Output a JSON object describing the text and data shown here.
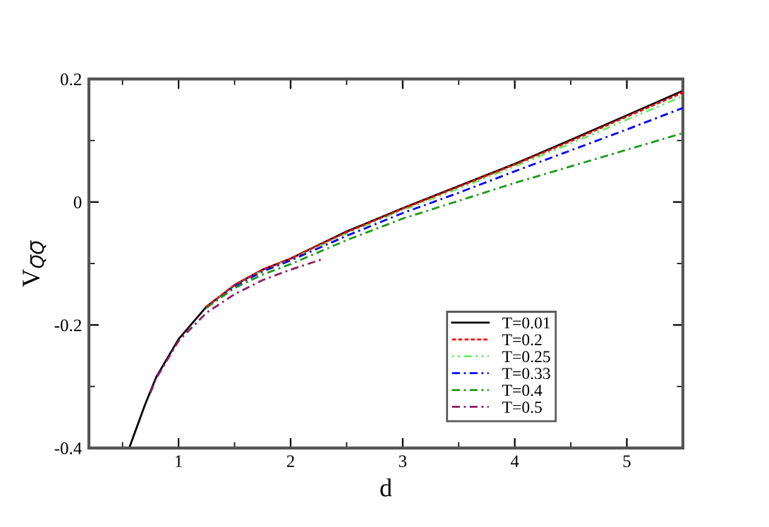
{
  "chart_data": {
    "type": "line",
    "xlabel": "d",
    "ylabel": "V$_{Q̅Q̅}$",
    "xlim": [
      0.2,
      5.5
    ],
    "ylim": [
      -0.4,
      0.2
    ],
    "xticks": [
      1,
      2,
      3,
      4,
      5
    ],
    "yticks": [
      -0.4,
      -0.2,
      0,
      0.2
    ],
    "grid": false,
    "legend": "bottom right",
    "marker": "none",
    "series": [
      {
        "name": "T=0.01",
        "color": "#000000",
        "line_style": "solid",
        "x": [
          0.56,
          0.7,
          0.8,
          1.0,
          1.25,
          1.5,
          1.75,
          2.0,
          2.5,
          3.0,
          3.5,
          4.0,
          4.5,
          5.0,
          5.5
        ],
        "values": [
          -0.4,
          -0.33,
          -0.285,
          -0.223,
          -0.17,
          -0.135,
          -0.11,
          -0.092,
          -0.048,
          -0.01,
          0.026,
          0.062,
          0.101,
          0.141,
          0.181
        ]
      },
      {
        "name": "T=0.2",
        "color": "#ff0000",
        "line_style": "dashed",
        "x": [
          1.25,
          1.5,
          1.75,
          2.0,
          2.5,
          3.0,
          3.5,
          4.0,
          4.5,
          5.0,
          5.5
        ],
        "values": [
          -0.17,
          -0.135,
          -0.11,
          -0.092,
          -0.049,
          -0.011,
          0.025,
          0.061,
          0.099,
          0.139,
          0.178
        ]
      },
      {
        "name": "T=0.25",
        "color": "#66ee66",
        "line_style": "dotted",
        "x": [
          1.25,
          1.5,
          1.75,
          2.0,
          2.5,
          3.0,
          3.5,
          4.0,
          4.5,
          5.0,
          5.5
        ],
        "values": [
          -0.17,
          -0.136,
          -0.111,
          -0.093,
          -0.051,
          -0.013,
          0.022,
          0.058,
          0.095,
          0.134,
          0.172
        ]
      },
      {
        "name": "T=0.33",
        "color": "#0000ff",
        "line_style": "dashdot",
        "x": [
          1.25,
          1.5,
          1.75,
          2.0,
          2.5,
          3.0,
          3.5,
          4.0,
          4.5,
          5.0,
          5.5
        ],
        "values": [
          -0.171,
          -0.137,
          -0.113,
          -0.095,
          -0.055,
          -0.018,
          0.015,
          0.05,
          0.084,
          0.118,
          0.153
        ]
      },
      {
        "name": "T=0.4",
        "color": "#1a9a1a",
        "line_style": "dashdot",
        "x": [
          1.25,
          1.5,
          1.75,
          2.0,
          2.5,
          3.0,
          3.5,
          4.0,
          4.5,
          5.0,
          5.5
        ],
        "values": [
          -0.172,
          -0.14,
          -0.118,
          -0.101,
          -0.062,
          -0.027,
          0.002,
          0.031,
          0.058,
          0.085,
          0.112
        ]
      },
      {
        "name": "T=0.5",
        "color": "#8b1c62",
        "line_style": "dashdot",
        "x": [
          0.75,
          0.8,
          1.0,
          1.25,
          1.5,
          1.75,
          2.0,
          2.15,
          2.3
        ],
        "values": [
          -0.31,
          -0.287,
          -0.226,
          -0.18,
          -0.15,
          -0.127,
          -0.11,
          -0.101,
          -0.092
        ]
      }
    ]
  }
}
